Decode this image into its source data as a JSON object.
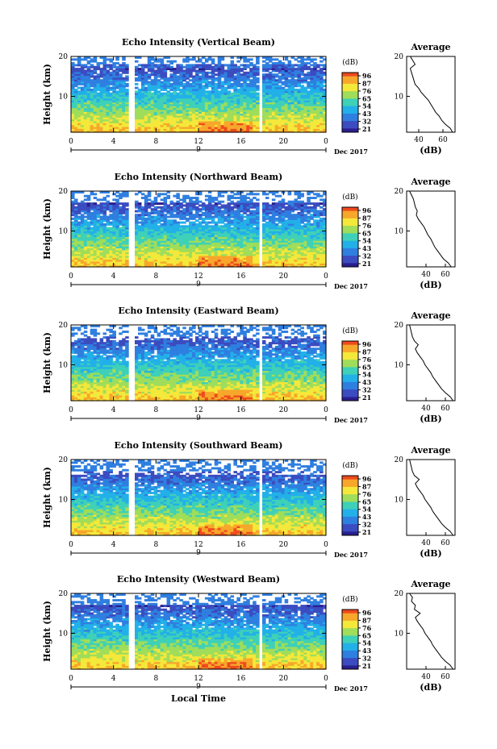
{
  "chart_data": [
    {
      "type": "heatmap",
      "title": "Echo Intensity (Vertical Beam)",
      "ylabel": "Height (km)",
      "xlabel": "",
      "xlim": [
        0,
        24
      ],
      "ylim": [
        1,
        20
      ],
      "x_ticks": [
        "0",
        "4",
        "8",
        "12",
        "16",
        "20",
        "0"
      ],
      "y_ticks": [
        "10",
        "20"
      ],
      "date_marker": "9",
      "date_label": "Dec 2017",
      "colorbar": {
        "unit": "(dB)",
        "ticks": [
          "96",
          "87",
          "76",
          "65",
          "54",
          "43",
          "32",
          "21"
        ]
      },
      "data_gaps_hours": [
        [
          5.5,
          6.0
        ],
        [
          17.6,
          18.0
        ]
      ],
      "blank_above_km": 18,
      "average_profile": {
        "title": "Average",
        "xlabel": "(dB)",
        "x_ticks": [
          "40",
          "60"
        ],
        "y_ticks": [
          "10",
          "20"
        ],
        "xlim": [
          30,
          70
        ],
        "height_km": [
          1,
          2,
          3,
          4,
          5,
          6,
          7,
          8,
          9,
          10,
          11,
          12,
          13,
          14,
          15,
          16,
          17,
          18,
          19,
          20
        ],
        "values_db": [
          68,
          66,
          62,
          59,
          57,
          54,
          52,
          50,
          48,
          45,
          42,
          40,
          37,
          36,
          35,
          34,
          33,
          37,
          35,
          33
        ]
      }
    },
    {
      "type": "heatmap",
      "title": "Echo Intensity (Northward Beam)",
      "ylabel": "Height (km)",
      "xlabel": "",
      "xlim": [
        0,
        24
      ],
      "ylim": [
        1,
        20
      ],
      "x_ticks": [
        "0",
        "4",
        "8",
        "12",
        "16",
        "20",
        "0"
      ],
      "y_ticks": [
        "10",
        "20"
      ],
      "date_marker": "9",
      "date_label": "Dec 2017",
      "colorbar": {
        "unit": "(dB)",
        "ticks": [
          "96",
          "87",
          "76",
          "65",
          "54",
          "43",
          "32",
          "21"
        ]
      },
      "data_gaps_hours": [
        [
          5.5,
          6.0
        ],
        [
          17.6,
          18.0
        ]
      ],
      "blank_above_km": 17,
      "average_profile": {
        "title": "Average",
        "xlabel": "(dB)",
        "x_ticks": [
          "40",
          "60"
        ],
        "y_ticks": [
          "10",
          "20"
        ],
        "xlim": [
          20,
          70
        ],
        "height_km": [
          1,
          2,
          3,
          4,
          5,
          6,
          7,
          8,
          9,
          10,
          11,
          12,
          13,
          14,
          15,
          16,
          17,
          18,
          19,
          20
        ],
        "values_db": [
          66,
          63,
          58,
          55,
          52,
          49,
          47,
          45,
          42,
          40,
          38,
          35,
          32,
          30,
          31,
          29,
          28,
          27,
          25,
          23
        ]
      }
    },
    {
      "type": "heatmap",
      "title": "Echo Intensity (Eastward Beam)",
      "ylabel": "Height (km)",
      "xlabel": "",
      "xlim": [
        0,
        24
      ],
      "ylim": [
        1,
        20
      ],
      "x_ticks": [
        "0",
        "4",
        "8",
        "12",
        "16",
        "20",
        "0"
      ],
      "y_ticks": [
        "10",
        "20"
      ],
      "date_marker": "9",
      "date_label": "Dec 2017",
      "colorbar": {
        "unit": "(dB)",
        "ticks": [
          "96",
          "87",
          "76",
          "65",
          "54",
          "43",
          "32",
          "21"
        ]
      },
      "data_gaps_hours": [
        [
          5.5,
          6.0
        ],
        [
          17.6,
          18.0
        ]
      ],
      "blank_above_km": 16,
      "average_profile": {
        "title": "Average",
        "xlabel": "(dB)",
        "x_ticks": [
          "40",
          "60"
        ],
        "y_ticks": [
          "10",
          "20"
        ],
        "xlim": [
          20,
          70
        ],
        "height_km": [
          1,
          2,
          3,
          4,
          5,
          6,
          7,
          8,
          9,
          10,
          11,
          12,
          13,
          14,
          15,
          16,
          17,
          18,
          19,
          20
        ],
        "values_db": [
          68,
          65,
          60,
          56,
          53,
          50,
          47,
          45,
          42,
          39,
          37,
          34,
          31,
          29,
          32,
          28,
          26,
          25,
          24,
          23
        ]
      }
    },
    {
      "type": "heatmap",
      "title": "Echo Intensity (Southward Beam)",
      "ylabel": "Height (km)",
      "xlabel": "",
      "xlim": [
        0,
        24
      ],
      "ylim": [
        1,
        20
      ],
      "x_ticks": [
        "0",
        "4",
        "8",
        "12",
        "16",
        "20",
        "0"
      ],
      "y_ticks": [
        "10",
        "20"
      ],
      "date_marker": "9",
      "date_label": "Dec 2017",
      "colorbar": {
        "unit": "(dB)",
        "ticks": [
          "96",
          "87",
          "76",
          "65",
          "54",
          "43",
          "32",
          "21"
        ]
      },
      "data_gaps_hours": [
        [
          5.5,
          6.0
        ],
        [
          17.6,
          18.0
        ]
      ],
      "blank_above_km": 16,
      "average_profile": {
        "title": "Average",
        "xlabel": "(dB)",
        "x_ticks": [
          "40",
          "60"
        ],
        "y_ticks": [
          "10",
          "20"
        ],
        "xlim": [
          20,
          70
        ],
        "height_km": [
          1,
          2,
          3,
          4,
          5,
          6,
          7,
          8,
          9,
          10,
          11,
          12,
          13,
          14,
          15,
          16,
          17,
          18,
          19,
          20
        ],
        "values_db": [
          68,
          65,
          60,
          56,
          53,
          50,
          47,
          45,
          42,
          39,
          37,
          34,
          31,
          29,
          33,
          28,
          26,
          25,
          24,
          23
        ]
      }
    },
    {
      "type": "heatmap",
      "title": "Echo Intensity (Westward Beam)",
      "ylabel": "Height (km)",
      "xlabel": "Local Time",
      "xlim": [
        0,
        24
      ],
      "ylim": [
        1,
        20
      ],
      "x_ticks": [
        "0",
        "4",
        "8",
        "12",
        "16",
        "20",
        "0"
      ],
      "y_ticks": [
        "10",
        "20"
      ],
      "date_marker": "9",
      "date_label": "Dec 2017",
      "colorbar": {
        "unit": "(dB)",
        "ticks": [
          "96",
          "87",
          "76",
          "65",
          "54",
          "43",
          "32",
          "21"
        ]
      },
      "data_gaps_hours": [
        [
          5.5,
          6.0
        ],
        [
          17.6,
          18.0
        ]
      ],
      "blank_above_km": 17,
      "average_profile": {
        "title": "Average",
        "xlabel": "(dB)",
        "x_ticks": [
          "40",
          "60"
        ],
        "y_ticks": [
          "10",
          "20"
        ],
        "xlim": [
          20,
          70
        ],
        "height_km": [
          1,
          2,
          3,
          4,
          5,
          6,
          7,
          8,
          9,
          10,
          11,
          12,
          13,
          14,
          15,
          16,
          17,
          18,
          19,
          20
        ],
        "values_db": [
          68,
          65,
          60,
          56,
          53,
          50,
          47,
          45,
          42,
          39,
          37,
          34,
          31,
          29,
          34,
          28,
          29,
          25,
          26,
          23
        ]
      }
    }
  ],
  "colormap": [
    "#2a1f8f",
    "#3b4cc0",
    "#2f7fe0",
    "#22b0e8",
    "#3fd0b8",
    "#9fdd5a",
    "#f4e83a",
    "#f7a72b",
    "#ee4a1d"
  ]
}
